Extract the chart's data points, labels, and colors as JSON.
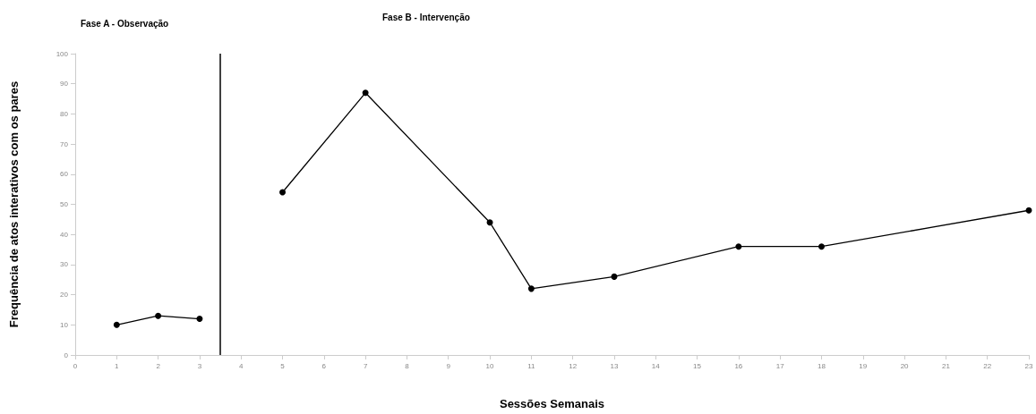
{
  "chart_data": {
    "type": "line",
    "xlabel": "Sessões Semanais",
    "ylabel": "Frequência de atos interativos com os pares",
    "annotations": [
      "Fase A - Observação",
      "Fase B - Intervenção"
    ],
    "series": [
      {
        "color": "#000000",
        "x": [
          1,
          2,
          3
        ],
        "values": [
          10,
          13,
          12
        ]
      },
      {
        "color": "#000000",
        "x": [
          5,
          7,
          10,
          11,
          13,
          16,
          18,
          23
        ],
        "values": [
          54,
          87,
          44,
          22,
          26,
          36,
          36,
          48
        ]
      }
    ],
    "ref_lines": [
      {
        "axis": "x",
        "value": 3.5,
        "color": "#000000"
      }
    ],
    "xlim": [
      0,
      23
    ],
    "xticks": [
      0,
      1,
      2,
      3,
      4,
      5,
      6,
      7,
      8,
      9,
      10,
      11,
      12,
      13,
      14,
      15,
      16,
      17,
      18,
      19,
      20,
      21,
      22,
      23
    ],
    "ylim": [
      0,
      100
    ],
    "yticks": [
      0,
      10,
      20,
      30,
      40,
      50,
      60,
      70,
      80,
      90,
      100
    ],
    "marker": "circle",
    "line_style": "solid"
  }
}
